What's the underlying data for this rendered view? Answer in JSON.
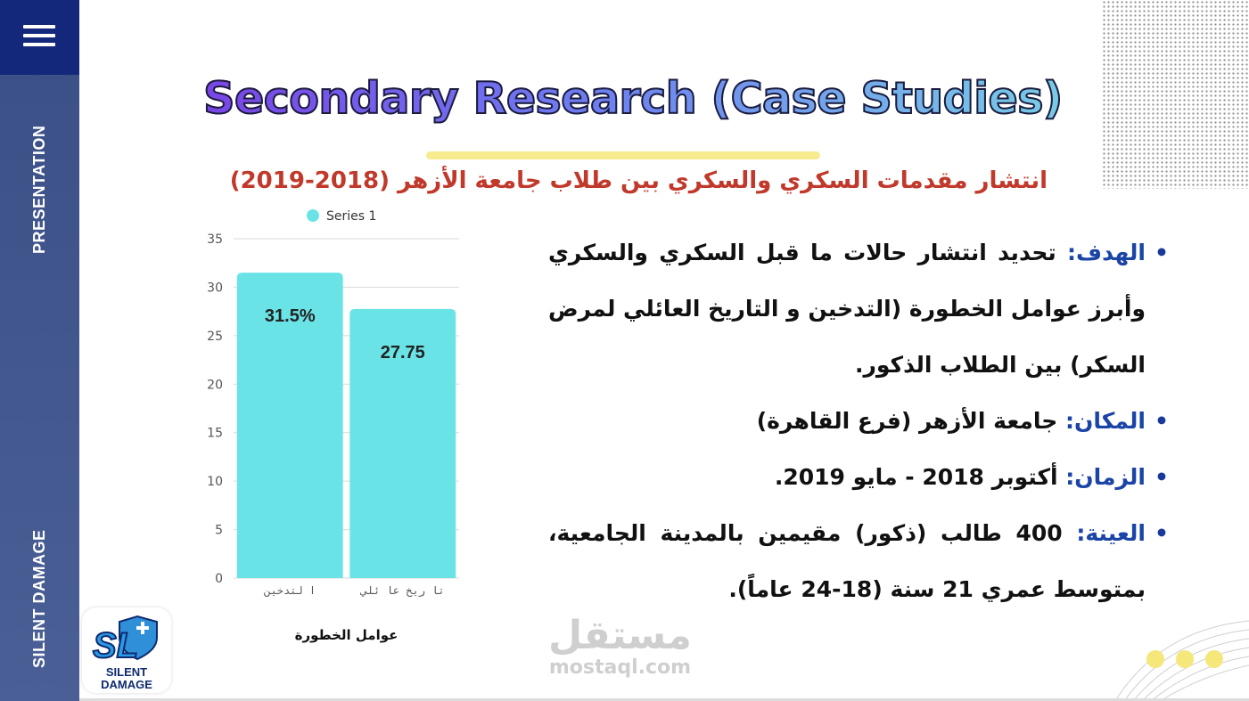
{
  "sidebar": {
    "top_label": "PRESENTATION",
    "bottom_label": "SILENT DAMAGE",
    "logo_mark": "SL",
    "logo_line1": "SILENT",
    "logo_line2": "DAMAGE",
    "menu_icon": "hamburger-menu-icon"
  },
  "slide": {
    "title": "Secondary Research (Case Studies)",
    "subtitle": "انتشار مقدمات السكري والسكري بين طلاب جامعة الأزهر (2018-2019)"
  },
  "bullets": [
    {
      "label": "الهدف:",
      "text": " تحديد انتشار حالات ما قبل السكري والسكري وأبرز عوامل الخطورة (التدخين و التاريخ العائلي لمرض السكر) بين الطلاب الذكور."
    },
    {
      "label": "المكان:",
      "text": " جامعة الأزهر (فرع القاهرة)"
    },
    {
      "label": "الزمان:",
      "text": " أكتوبر 2018 - مايو 2019."
    },
    {
      "label": "العينة:",
      "text": " 400 طالب (ذكور) مقيمين بالمدينة الجامعية، بمتوسط عمري 21 سنة (18-24 عاماً)."
    }
  ],
  "watermark": {
    "ar": "مستقل",
    "en": "mostaql.com"
  },
  "chart_data": {
    "type": "bar",
    "categories": [
      "ا لتدخين",
      "تا ريخ عا ئلي"
    ],
    "series": [
      {
        "name": "Series 1",
        "values": [
          31.5,
          27.75
        ]
      }
    ],
    "data_labels": [
      "31.5%",
      "27.75"
    ],
    "xlabel": "عوامل الخطورة",
    "ylabel": "",
    "ylim": [
      0,
      35
    ],
    "yticks": [
      0,
      5,
      10,
      15,
      20,
      25,
      30,
      35
    ],
    "grid": true,
    "legend": "top",
    "bar_color": "#6ae3e6"
  }
}
